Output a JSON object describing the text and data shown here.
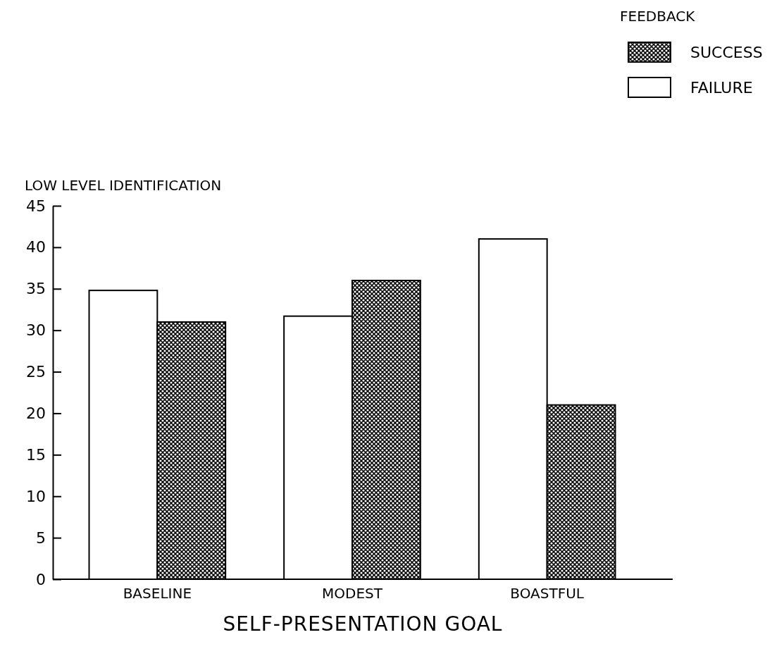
{
  "chart_data": {
    "type": "bar",
    "ylabel": "LOW LEVEL IDENTIFICATION",
    "xlabel": "SELF-PRESENTATION GOAL",
    "legend_title": "FEEDBACK",
    "categories": [
      "BASELINE",
      "MODEST",
      "BOASTFUL"
    ],
    "series": [
      {
        "name": "FAILURE",
        "color": "#ffffff",
        "values": [
          34.8,
          31.7,
          41
        ]
      },
      {
        "name": "SUCCESS",
        "color": "#000000",
        "values": [
          31,
          36,
          21
        ]
      }
    ],
    "ylim": [
      0,
      45
    ],
    "yticks": [
      0,
      5,
      10,
      15,
      20,
      25,
      30,
      35,
      40,
      45
    ],
    "legend": "top right",
    "grid": false
  }
}
